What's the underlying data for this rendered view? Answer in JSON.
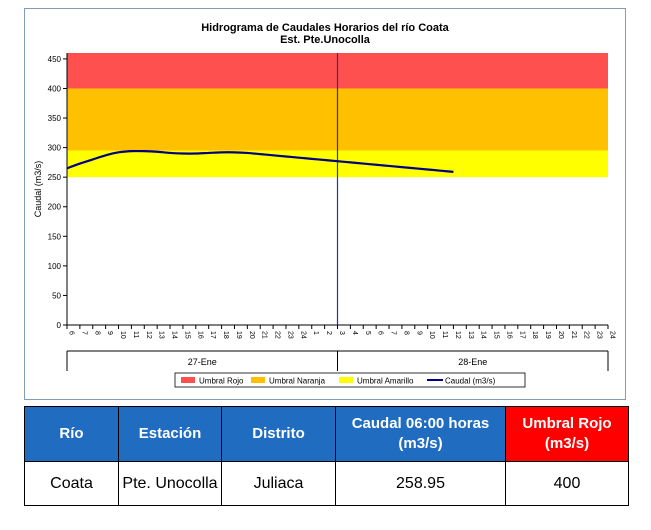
{
  "chart_data": {
    "type": "line",
    "title": "Hidrograma de Caudales Horarios del río Coata",
    "subtitle": "Est. Pte.Unocolla",
    "ylabel": "Caudal  (m3/s)",
    "ylim": [
      0,
      460
    ],
    "yticks": [
      0,
      50,
      100,
      150,
      200,
      250,
      300,
      350,
      400,
      450
    ],
    "x_hour_labels": [
      "6",
      "7",
      "8",
      "9",
      "10",
      "11",
      "12",
      "13",
      "14",
      "15",
      "16",
      "17",
      "18",
      "19",
      "20",
      "21",
      "22",
      "23",
      "24",
      "1",
      "2",
      "3",
      "4",
      "5",
      "6",
      "7",
      "8",
      "9",
      "10",
      "11",
      "12",
      "13",
      "14",
      "15",
      "16",
      "17",
      "18",
      "19",
      "20",
      "21",
      "22",
      "23",
      "24"
    ],
    "day_labels": [
      "27-Ene",
      "28-Ene"
    ],
    "day_divider_index": 21,
    "bands": [
      {
        "name": "Umbral Rojo",
        "from": 400,
        "to": 460,
        "color": "#ff5050"
      },
      {
        "name": "Umbral Naranja",
        "from": 295,
        "to": 400,
        "color": "#ffc000"
      },
      {
        "name": "Umbral Amarillo",
        "from": 250,
        "to": 295,
        "color": "#ffff00"
      }
    ],
    "series": [
      {
        "name": "Caudal (m3/s)",
        "color": "#000080",
        "points": [
          [
            0,
            265
          ],
          [
            1,
            273
          ],
          [
            2,
            280
          ],
          [
            3,
            287
          ],
          [
            4,
            292
          ],
          [
            5,
            294
          ],
          [
            6,
            294
          ],
          [
            7,
            293
          ],
          [
            8,
            291
          ],
          [
            9,
            290
          ],
          [
            10,
            290
          ],
          [
            11,
            291
          ],
          [
            12,
            292
          ],
          [
            13,
            292
          ],
          [
            14,
            291
          ],
          [
            15,
            289
          ],
          [
            16,
            287
          ],
          [
            17,
            285
          ],
          [
            18,
            283
          ],
          [
            19,
            281
          ],
          [
            20,
            279
          ],
          [
            21,
            277
          ],
          [
            22,
            275
          ],
          [
            23,
            273
          ],
          [
            24,
            271
          ],
          [
            25,
            269
          ],
          [
            26,
            267
          ],
          [
            27,
            265
          ],
          [
            28,
            263
          ],
          [
            29,
            261
          ],
          [
            30,
            258.95
          ]
        ]
      }
    ],
    "legend": [
      "Umbral Rojo",
      "Umbral Naranja",
      "Umbral Amarillo",
      "Caudal (m3/s)"
    ],
    "legend_position": "bottom",
    "grid": false
  },
  "table": {
    "headers": [
      "Río",
      "Estación",
      "Distrito",
      "Caudal  06:00 horas (m3/s)",
      "Umbral Rojo (m3/s)"
    ],
    "row": [
      "Coata",
      "Pte. Unocolla",
      "Juliaca",
      "258.95",
      "400"
    ],
    "colors": {
      "header_blue": "#1f6cc1",
      "header_red": "#ff0000"
    }
  }
}
